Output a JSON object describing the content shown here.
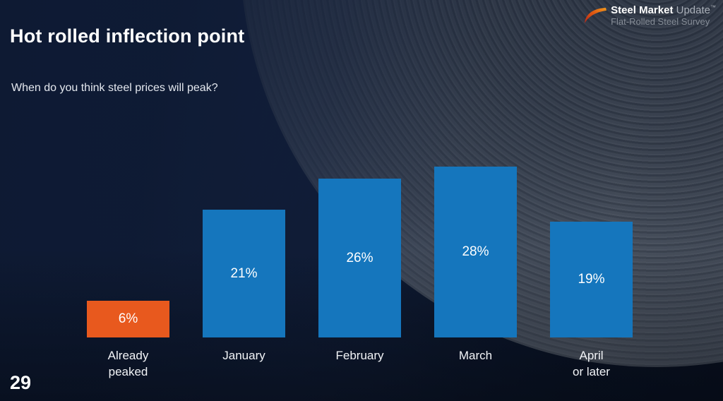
{
  "slide": {
    "title": "Hot rolled inflection point",
    "question": "When do you think steel prices will peak?",
    "page_number": "29"
  },
  "logo": {
    "brand_bold": "Steel Market",
    "brand_light": "Update",
    "trademark": "™",
    "subtitle": "Flat-Rolled Steel Survey"
  },
  "chart_data": {
    "type": "bar",
    "categories": [
      "Already\npeaked",
      "January",
      "February",
      "March",
      "April\nor later"
    ],
    "values": [
      6,
      21,
      26,
      28,
      19
    ],
    "value_labels": [
      "6%",
      "21%",
      "26%",
      "28%",
      "19%"
    ],
    "bar_colors": [
      "#e8591e",
      "#1576bd",
      "#1576bd",
      "#1576bd",
      "#1576bd"
    ],
    "title": "Hot rolled inflection point",
    "xlabel": "",
    "ylabel": "",
    "ylim": [
      0,
      30
    ],
    "grid": false,
    "legend": false,
    "value_label_position": "center-inside",
    "orientation": "vertical"
  },
  "colors": {
    "accent_orange": "#e8591e",
    "bar_blue": "#1576bd",
    "background_navy": "#101c36"
  }
}
